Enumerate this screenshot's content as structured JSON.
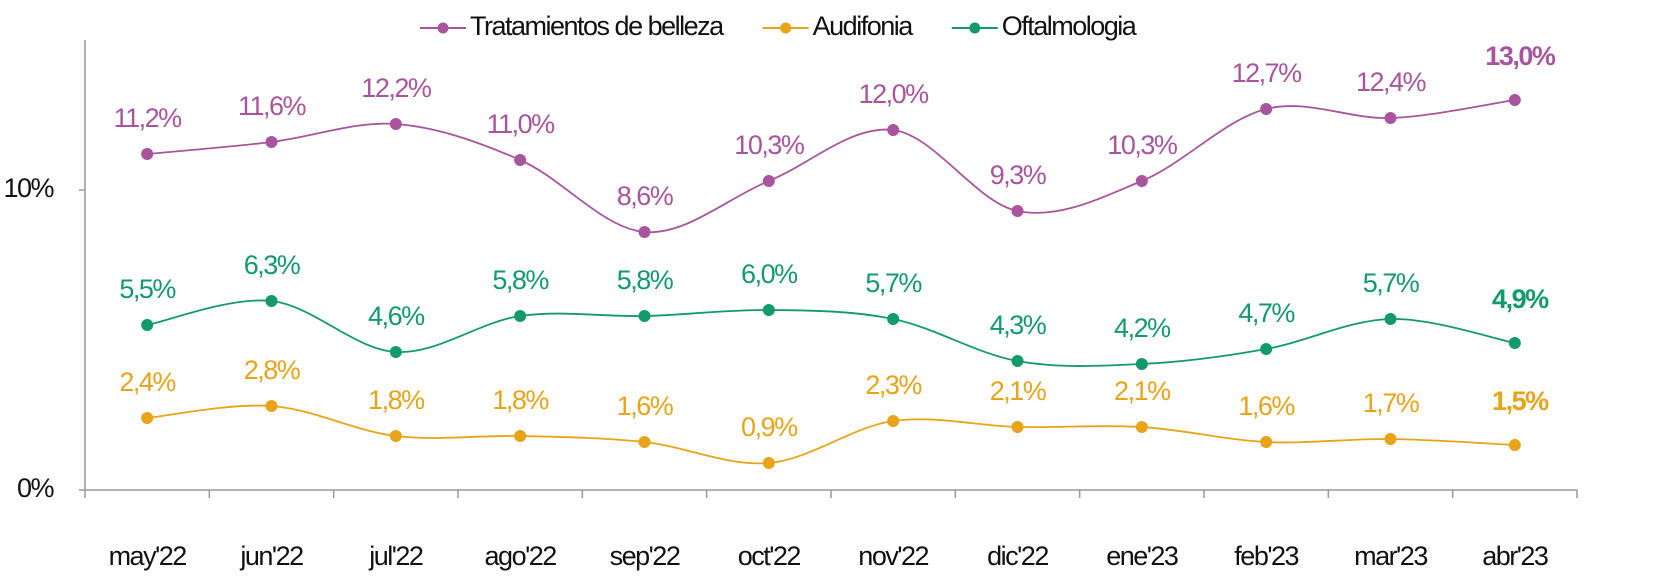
{
  "chart_data": {
    "type": "line",
    "categories": [
      "may'22",
      "jun'22",
      "jul'22",
      "ago'22",
      "sep'22",
      "oct'22",
      "nov'22",
      "dic'22",
      "ene'23",
      "feb'23",
      "mar'23",
      "abr'23"
    ],
    "series": [
      {
        "name": "Tratamientos de belleza",
        "color": "#a8559e",
        "values": [
          11.2,
          11.6,
          12.2,
          11.0,
          8.6,
          10.3,
          12.0,
          9.3,
          10.3,
          12.7,
          12.4,
          13.0
        ],
        "value_labels": [
          "11,2%",
          "11,6%",
          "12,2%",
          "11,0%",
          "8,6%",
          "10,3%",
          "12,0%",
          "9,3%",
          "10,3%",
          "12,7%",
          "12,4%",
          "13,0%"
        ]
      },
      {
        "name": "Audifonia",
        "color": "#e8a317",
        "values": [
          2.4,
          2.8,
          1.8,
          1.8,
          1.6,
          0.9,
          2.3,
          2.1,
          2.1,
          1.6,
          1.7,
          1.5
        ],
        "value_labels": [
          "2,4%",
          "2,8%",
          "1,8%",
          "1,8%",
          "1,6%",
          "0,9%",
          "2,3%",
          "2,1%",
          "2,1%",
          "1,6%",
          "1,7%",
          "1,5%"
        ]
      },
      {
        "name": "Oftalmologia",
        "color": "#139a6a",
        "values": [
          5.5,
          6.3,
          4.6,
          5.8,
          5.8,
          6.0,
          5.7,
          4.3,
          4.2,
          4.7,
          5.7,
          4.9
        ],
        "value_labels": [
          "5,5%",
          "6,3%",
          "4,6%",
          "5,8%",
          "5,8%",
          "6,0%",
          "5,7%",
          "4,3%",
          "4,2%",
          "4,7%",
          "5,7%",
          "4,9%"
        ]
      }
    ],
    "ylim": [
      0,
      15
    ],
    "yticks": [
      {
        "value": 0,
        "label": "0%"
      },
      {
        "value": 10,
        "label": "10%"
      }
    ],
    "legend": "top"
  }
}
